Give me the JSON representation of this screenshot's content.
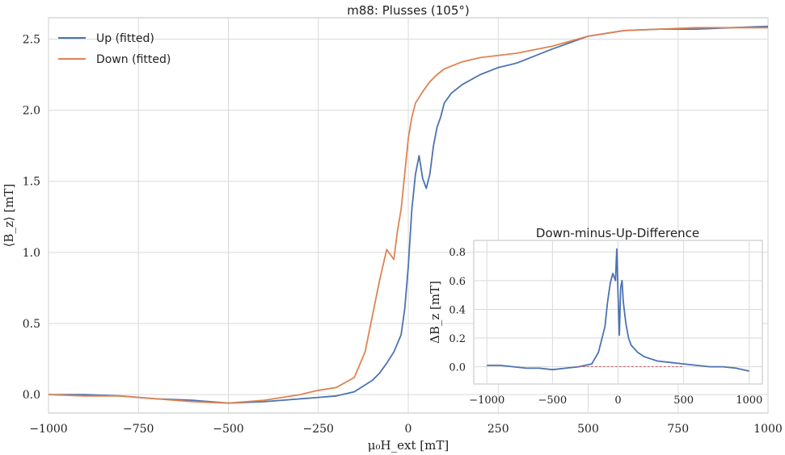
{
  "chart_data": [
    {
      "type": "line",
      "title": "m88:  Plusses (105°)",
      "xlabel": "μ₀H_ext [mT]",
      "ylabel": "⟨B_z⟩ [mT]",
      "xlim": [
        -1000,
        1000
      ],
      "ylim": [
        -0.13,
        2.65
      ],
      "xticks": [
        "−1000",
        "−750",
        "−500",
        "−250",
        "0",
        "250",
        "500",
        "750",
        "1000"
      ],
      "yticks": [
        "0.0",
        "0.5",
        "1.0",
        "1.5",
        "2.0",
        "2.5"
      ],
      "grid": true,
      "legend_position": "top-left",
      "series": [
        {
          "name": "Up (fitted)",
          "color": "#4c72b0",
          "x": [
            -1000,
            -900,
            -800,
            -700,
            -600,
            -500,
            -400,
            -300,
            -250,
            -200,
            -150,
            -100,
            -80,
            -60,
            -40,
            -20,
            -10,
            0,
            10,
            20,
            30,
            40,
            50,
            60,
            70,
            80,
            90,
            100,
            120,
            150,
            200,
            250,
            300,
            400,
            500,
            600,
            700,
            800,
            900,
            1000
          ],
          "y": [
            0.0,
            0.0,
            -0.01,
            -0.03,
            -0.04,
            -0.06,
            -0.05,
            -0.03,
            -0.02,
            -0.01,
            0.02,
            0.1,
            0.15,
            0.22,
            0.3,
            0.42,
            0.6,
            0.9,
            1.3,
            1.55,
            1.68,
            1.52,
            1.45,
            1.55,
            1.75,
            1.88,
            1.95,
            2.05,
            2.12,
            2.18,
            2.25,
            2.3,
            2.33,
            2.43,
            2.52,
            2.56,
            2.57,
            2.57,
            2.58,
            2.59
          ]
        },
        {
          "name": "Down (fitted)",
          "color": "#dd8452",
          "x": [
            -1000,
            -900,
            -800,
            -700,
            -600,
            -500,
            -400,
            -300,
            -250,
            -200,
            -150,
            -120,
            -100,
            -80,
            -60,
            -40,
            -30,
            -20,
            -10,
            0,
            10,
            20,
            40,
            60,
            80,
            100,
            150,
            200,
            300,
            400,
            500,
            600,
            700,
            800,
            900,
            1000
          ],
          "y": [
            0.0,
            -0.01,
            -0.01,
            -0.03,
            -0.05,
            -0.06,
            -0.04,
            0.0,
            0.03,
            0.05,
            0.12,
            0.3,
            0.55,
            0.8,
            1.02,
            0.95,
            1.15,
            1.3,
            1.55,
            1.8,
            1.95,
            2.05,
            2.13,
            2.2,
            2.25,
            2.29,
            2.34,
            2.37,
            2.4,
            2.45,
            2.52,
            2.56,
            2.57,
            2.58,
            2.58,
            2.58
          ]
        }
      ]
    },
    {
      "type": "line",
      "title": "Down-minus-Up-Difference",
      "xlabel": "",
      "ylabel": "ΔB_z [mT]",
      "xlim": [
        -1100,
        1100
      ],
      "ylim": [
        -0.12,
        0.88
      ],
      "xticks": [
        "−1000",
        "−500",
        "0",
        "500",
        "1000"
      ],
      "yticks": [
        "0.0",
        "0.2",
        "0.4",
        "0.6",
        "0.8"
      ],
      "grid": true,
      "series": [
        {
          "color": "#4c72b0",
          "x": [
            -1000,
            -900,
            -800,
            -700,
            -600,
            -500,
            -400,
            -300,
            -200,
            -150,
            -100,
            -80,
            -60,
            -40,
            -20,
            -10,
            0,
            10,
            20,
            30,
            40,
            60,
            80,
            100,
            150,
            200,
            300,
            400,
            500,
            600,
            700,
            800,
            900,
            1000
          ],
          "y": [
            0.01,
            0.01,
            0.0,
            -0.01,
            -0.01,
            -0.02,
            -0.01,
            0.0,
            0.02,
            0.1,
            0.28,
            0.45,
            0.58,
            0.65,
            0.6,
            0.82,
            0.5,
            0.22,
            0.55,
            0.6,
            0.45,
            0.3,
            0.2,
            0.15,
            0.1,
            0.07,
            0.04,
            0.03,
            0.02,
            0.01,
            0.0,
            0.0,
            -0.01,
            -0.03
          ]
        },
        {
          "color": "#c44e52",
          "x": [
            -300,
            500
          ],
          "y": [
            0.0,
            0.0
          ]
        }
      ]
    }
  ]
}
